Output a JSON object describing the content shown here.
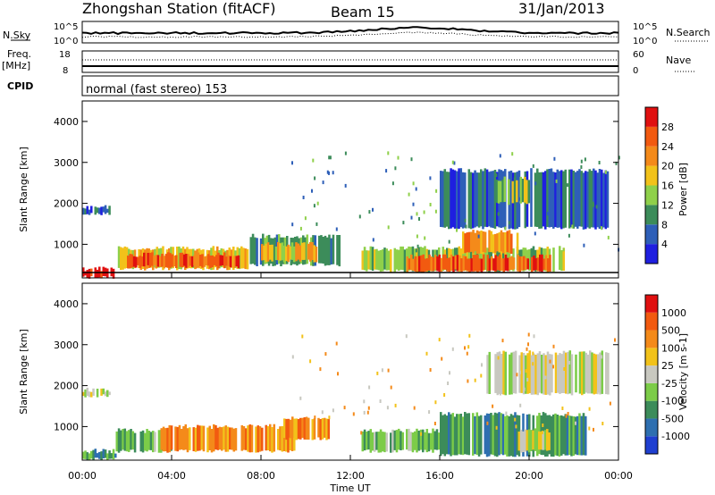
{
  "header": {
    "station": "Zhongshan Station (fitACF)",
    "beam": "Beam 15",
    "date": "31/Jan/2013"
  },
  "top_panels": {
    "nsky_label": "N.Sky",
    "nsearch_label": "N.Search",
    "freq_label": "Freq.",
    "freq_unit": "[MHz]",
    "nave_label": "Nave",
    "cpid_label": "CPID",
    "cpid_text": "normal (fast stereo) 153",
    "left_ticks_noise": [
      "10^5",
      "10^0"
    ],
    "right_ticks_noise": [
      "10^5",
      "10^0"
    ],
    "left_ticks_freq": [
      "18",
      "8"
    ],
    "right_ticks_nave": [
      "60",
      "0"
    ]
  },
  "power_panel": {
    "ylabel": "Slant Range [km]",
    "yticks": [
      "4000",
      "3000",
      "2000",
      "1000"
    ],
    "colorbar_label": "Power [dB]",
    "colorbar_ticks": [
      "28",
      "24",
      "20",
      "16",
      "12",
      "8",
      "4"
    ],
    "colors": [
      "#1f1fe0",
      "#2e5fb8",
      "#3c8c5a",
      "#8fd04a",
      "#f2c21a",
      "#f48a1a",
      "#f25a10",
      "#e01010"
    ]
  },
  "velocity_panel": {
    "ylabel": "Slant Range [km]",
    "yticks": [
      "4000",
      "3000",
      "2000",
      "1000"
    ],
    "colorbar_label": "Velocity [m s-1]",
    "colorbar_ticks": [
      "1000",
      "500",
      "100",
      "25",
      "-25",
      "-100",
      "-500",
      "-1000"
    ],
    "colors": [
      "#1f3fd0",
      "#2e6fb0",
      "#3c8c5a",
      "#7ccc48",
      "#c8c8c0",
      "#f2c21a",
      "#f48a1a",
      "#f25a10",
      "#e01010"
    ]
  },
  "xaxis": {
    "label": "Time UT",
    "ticks": [
      "00:00",
      "04:00",
      "08:00",
      "12:00",
      "16:00",
      "20:00",
      "00:00"
    ]
  },
  "chart_data": {
    "type": "heatmap",
    "x_range_hours": [
      0,
      24
    ],
    "y_range_km": [
      180,
      4500
    ],
    "power_regions": [
      {
        "t0": 0.0,
        "t1": 1.5,
        "r0": 200,
        "r1": 400,
        "level": 7
      },
      {
        "t0": 0.0,
        "t1": 1.2,
        "r0": 1750,
        "r1": 1900,
        "level": 1
      },
      {
        "t0": 1.5,
        "t1": 7.5,
        "r0": 400,
        "r1": 900,
        "level": 4
      },
      {
        "t0": 2.0,
        "t1": 7.0,
        "r0": 450,
        "r1": 750,
        "level": 6
      },
      {
        "t0": 7.5,
        "t1": 11.5,
        "r0": 500,
        "r1": 1200,
        "level": 2
      },
      {
        "t0": 8.0,
        "t1": 10.5,
        "r0": 600,
        "r1": 1000,
        "level": 4
      },
      {
        "t0": 12.5,
        "t1": 21.5,
        "r0": 350,
        "r1": 900,
        "level": 3
      },
      {
        "t0": 14.5,
        "t1": 21.0,
        "r0": 350,
        "r1": 700,
        "level": 6
      },
      {
        "t0": 17.0,
        "t1": 19.5,
        "r0": 800,
        "r1": 1300,
        "level": 5
      },
      {
        "t0": 16.0,
        "t1": 23.5,
        "r0": 1400,
        "r1": 2800,
        "level": 1
      },
      {
        "t0": 18.5,
        "t1": 20.0,
        "r0": 2000,
        "r1": 2600,
        "level": 3
      }
    ],
    "velocity_regions": [
      {
        "t0": 0.0,
        "t1": 1.5,
        "r0": 200,
        "r1": 400,
        "level": 2
      },
      {
        "t0": 0.0,
        "t1": 1.2,
        "r0": 1750,
        "r1": 1900,
        "level": 4
      },
      {
        "t0": 1.5,
        "t1": 4.0,
        "r0": 400,
        "r1": 900,
        "level": 3
      },
      {
        "t0": 3.5,
        "t1": 9.5,
        "r0": 400,
        "r1": 1000,
        "level": 6
      },
      {
        "t0": 9.0,
        "t1": 11.0,
        "r0": 700,
        "r1": 1200,
        "level": 6
      },
      {
        "t0": 12.5,
        "t1": 16.0,
        "r0": 400,
        "r1": 900,
        "level": 3
      },
      {
        "t0": 16.0,
        "t1": 22.5,
        "r0": 300,
        "r1": 1300,
        "level": 2
      },
      {
        "t0": 18.0,
        "t1": 23.5,
        "r0": 1800,
        "r1": 2800,
        "level": 4
      },
      {
        "t0": 19.5,
        "t1": 21.0,
        "r0": 400,
        "r1": 900,
        "level": 4
      }
    ]
  }
}
